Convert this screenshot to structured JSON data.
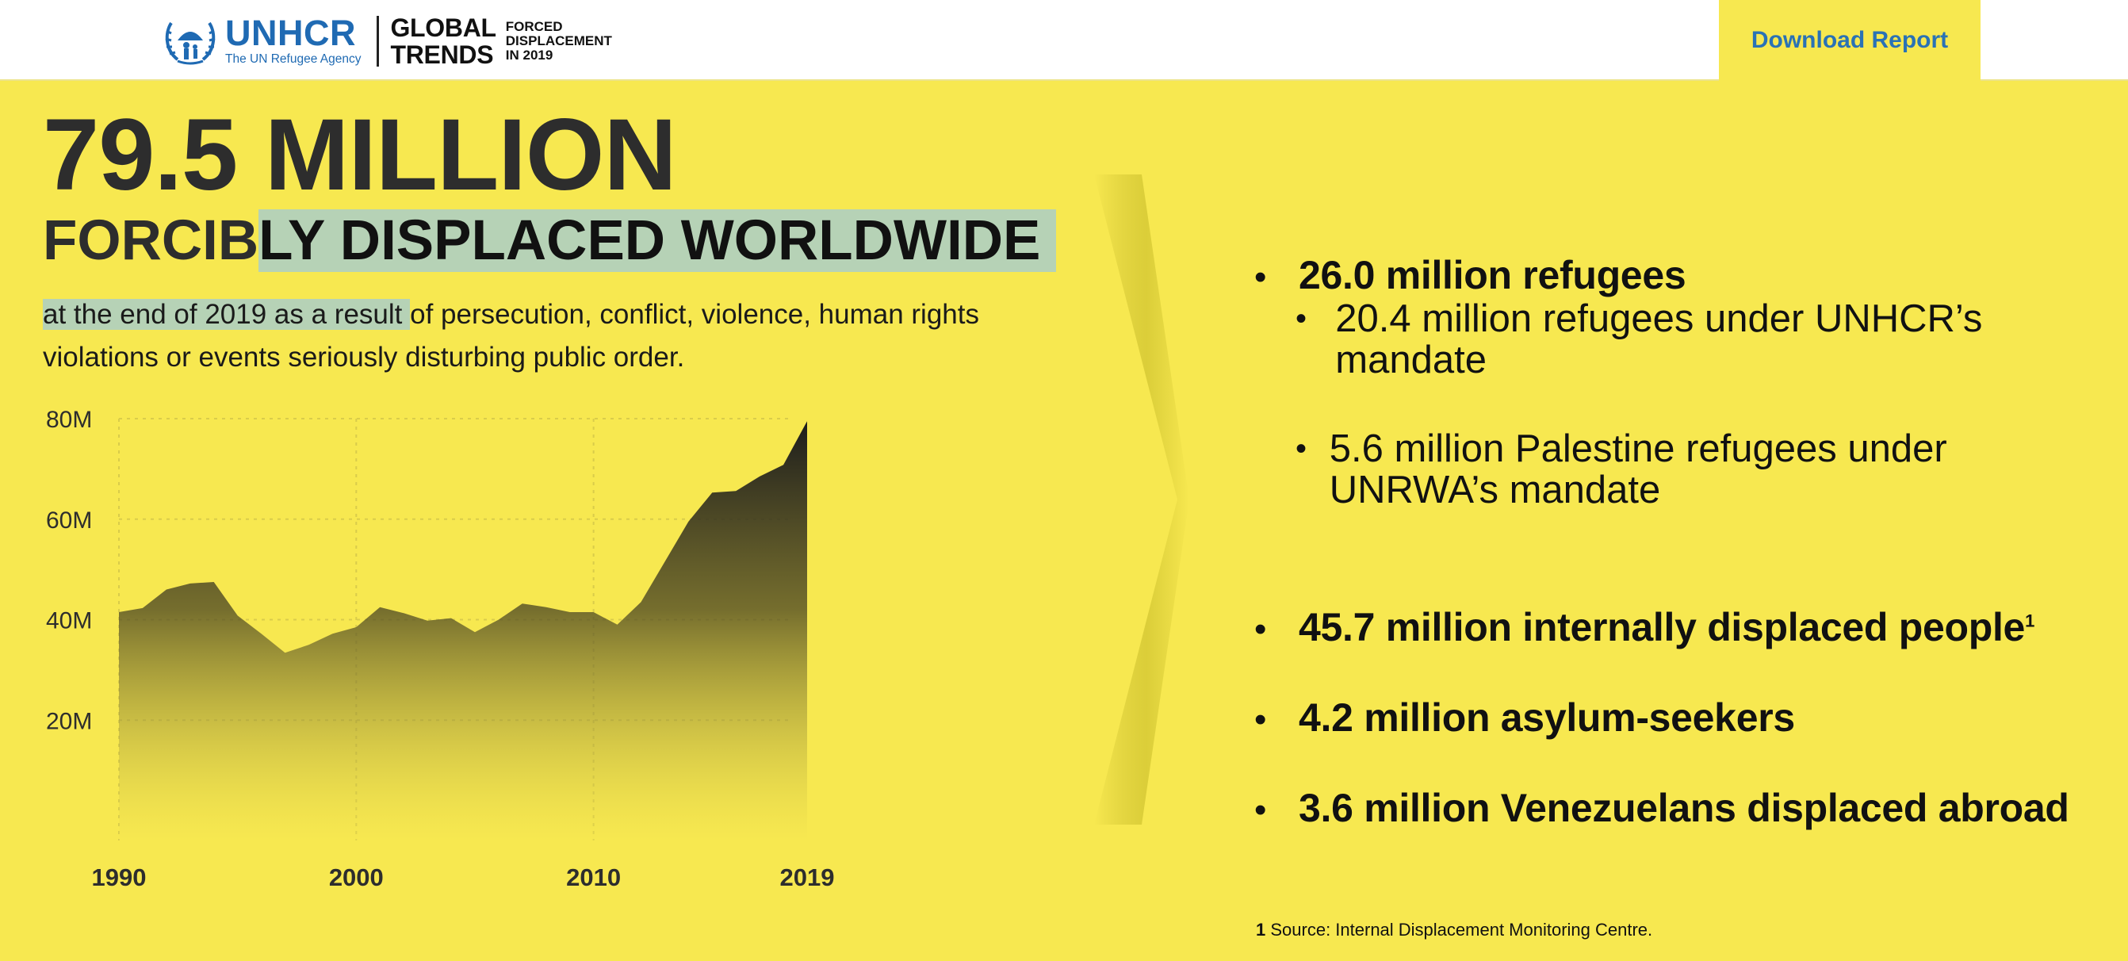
{
  "header": {
    "org_name": "UNHCR",
    "org_tagline": "The UN Refugee Agency",
    "report_title_line1": "GLOBAL",
    "report_title_line2": "TRENDS",
    "report_subtitle_line1": "FORCED",
    "report_subtitle_line2": "DISPLACEMENT",
    "report_subtitle_line3": "IN 2019",
    "download_label": "Download Report"
  },
  "hero": {
    "big_number": "79.5 MILLION",
    "headline_part1": "FORCIB",
    "headline_part2": "LY DISPLACED WORLDWIDE",
    "desc_highlight": "at the end of 2019 as a result ",
    "desc_rest": "of persecution, conflict, violence, human rights violations or events seriously disturbing public order."
  },
  "colors": {
    "background": "#f7e850",
    "highlight": "#b6d2b6",
    "brand_blue": "#1f6ab3",
    "text_dark": "#2d2d2d"
  },
  "chart_data": {
    "type": "area",
    "x": [
      1990,
      1991,
      1992,
      1993,
      1994,
      1995,
      1996,
      1997,
      1998,
      1999,
      2000,
      2001,
      2002,
      2003,
      2004,
      2005,
      2006,
      2007,
      2008,
      2009,
      2010,
      2011,
      2012,
      2013,
      2014,
      2015,
      2016,
      2017,
      2018,
      2019
    ],
    "values": [
      41.5,
      42.3,
      46.0,
      47.2,
      47.5,
      40.8,
      37.2,
      33.4,
      35.0,
      37.2,
      38.5,
      42.5,
      41.3,
      39.8,
      40.3,
      37.5,
      40.0,
      43.2,
      42.5,
      41.5,
      41.5,
      39.0,
      43.5,
      51.5,
      59.5,
      65.3,
      65.6,
      68.5,
      70.8,
      79.5
    ],
    "x_ticks": [
      "1990",
      "2000",
      "2010",
      "2019"
    ],
    "y_ticks": [
      "20M",
      "40M",
      "60M",
      "80M"
    ],
    "y_tick_values": [
      20,
      40,
      60,
      80
    ],
    "x_tick_values": [
      1990,
      2000,
      2010,
      2019
    ],
    "ylim": [
      0,
      80
    ],
    "xlim": [
      1990,
      2019
    ],
    "grid": true
  },
  "facts": {
    "refugees": "26.0 million refugees",
    "sub1": "20.4 million refugees under UNHCR’s mandate",
    "sub2": "5.6 million Palestine refugees under UNRWA’s mandate",
    "idp": "45.7 million internally displaced people",
    "idp_footnote_mark": "1",
    "asylum": "4.2 million asylum-seekers",
    "venezuelans": "3.6 million Venezuelans displaced abroad",
    "bullet": "•"
  },
  "footnote": {
    "number": "1",
    "text": " Source: Internal Displacement Monitoring Centre."
  }
}
